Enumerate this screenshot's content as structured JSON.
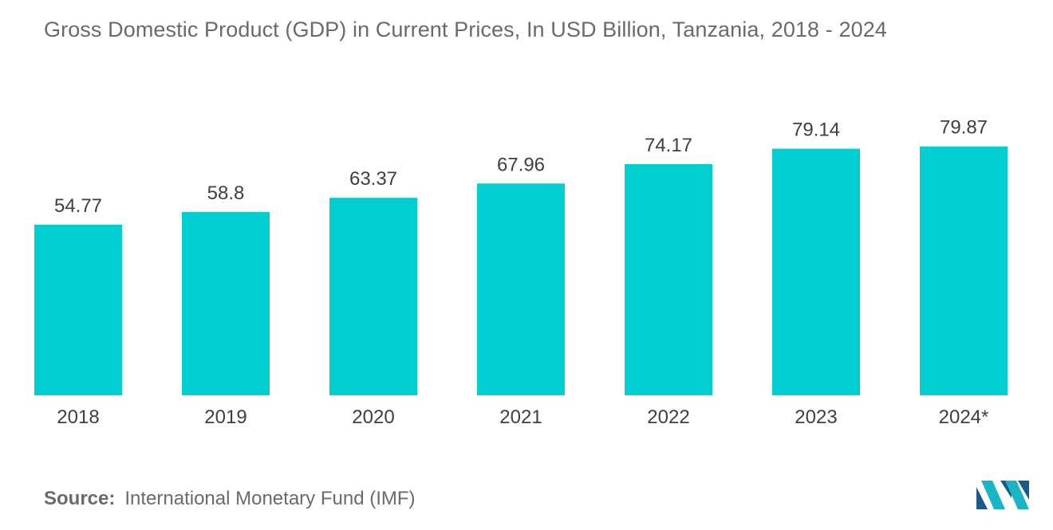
{
  "title": "Gross Domestic Product (GDP) in Current Prices, In USD Billion, Tanzania, 2018 - 2024",
  "source": {
    "label": "Source:",
    "text": "International Monetary Fund (IMF)"
  },
  "logo": {
    "icon": "mordor-intelligence-logo"
  },
  "colors": {
    "bar": "#00CED1",
    "logo_dark": "#1d5a8c",
    "logo_light": "#18b6c4"
  },
  "chart_data": {
    "type": "bar",
    "title": "Gross Domestic Product (GDP) in Current Prices, In USD Billion, Tanzania, 2018 - 2024",
    "xlabel": "",
    "ylabel": "",
    "categories": [
      "2018",
      "2019",
      "2020",
      "2021",
      "2022",
      "2023",
      "2024*"
    ],
    "values": [
      54.77,
      58.8,
      63.37,
      67.96,
      74.17,
      79.14,
      79.87
    ],
    "value_labels": [
      "54.77",
      "58.8",
      "63.37",
      "67.96",
      "74.17",
      "79.14",
      "79.87"
    ],
    "ylim": [
      0,
      80
    ],
    "grid": false,
    "legend": "none"
  }
}
